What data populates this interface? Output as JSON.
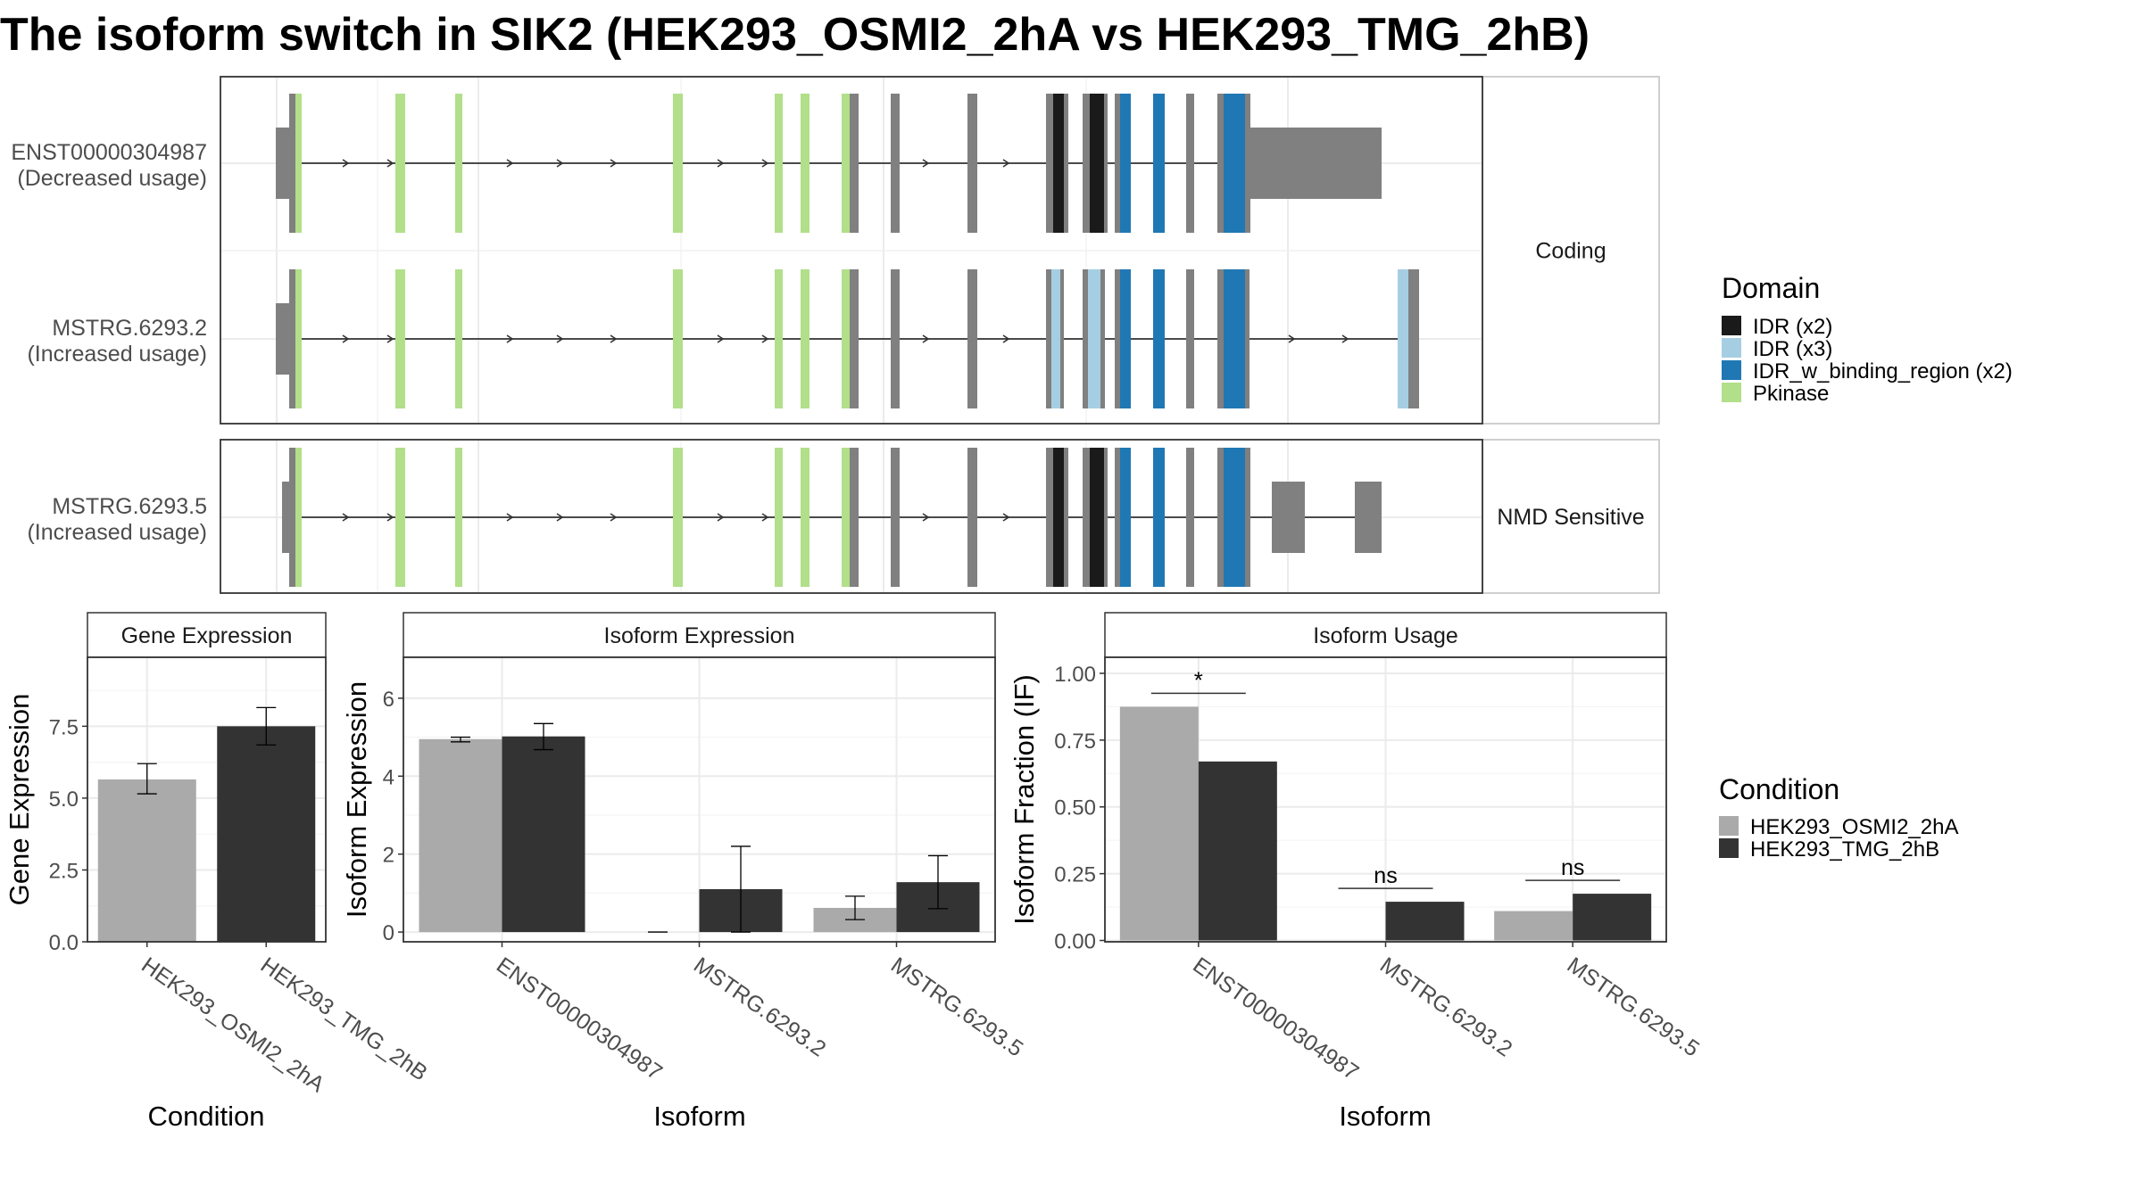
{
  "title": "The isoform switch in SIK2 (HEK293_OSMI2_2hA vs HEK293_TMG_2hB)",
  "colors": {
    "cond1": "#aaaaaa",
    "cond2": "#333333",
    "idr2": "#1a1a1a",
    "idr3": "#a6cee3",
    "idrbind": "#1f78b4",
    "pkinase": "#b2df8a",
    "exon": "#808080"
  },
  "transcripts": {
    "coding_strip": "Coding",
    "nmd_strip": "NMD Sensitive",
    "rows": [
      {
        "id": "ENST00000304987",
        "usage": "(Decreased usage)",
        "panel": "coding"
      },
      {
        "id": "MSTRG.6293.2",
        "usage": "(Increased usage)",
        "panel": "coding"
      },
      {
        "id": "MSTRG.6293.5",
        "usage": "(Increased usage)",
        "panel": "nmd"
      }
    ]
  },
  "domain_legend": {
    "title": "Domain",
    "items": [
      {
        "label": "IDR (x2)",
        "color": "#1a1a1a"
      },
      {
        "label": "IDR (x3)",
        "color": "#a6cee3"
      },
      {
        "label": "IDR_w_binding_region (x2)",
        "color": "#1f78b4"
      },
      {
        "label": "Pkinase",
        "color": "#b2df8a"
      }
    ]
  },
  "condition_legend": {
    "title": "Condition",
    "items": [
      {
        "label": "HEK293_OSMI2_2hA",
        "color": "#aaaaaa"
      },
      {
        "label": "HEK293_TMG_2hB",
        "color": "#333333"
      }
    ]
  },
  "chart_data": [
    {
      "type": "bar",
      "title": "Gene Expression",
      "xlabel": "Condition",
      "ylabel": "Gene Expression",
      "categories": [
        "HEK293_OSMI2_2hA",
        "HEK293_TMG_2hB"
      ],
      "values": [
        5.65,
        7.5
      ],
      "errors": [
        [
          5.15,
          6.2
        ],
        [
          6.85,
          8.15
        ]
      ],
      "ylim": [
        0,
        9.9
      ],
      "yticks": [
        0.0,
        2.5,
        5.0,
        7.5
      ],
      "ytick_labels": [
        "0.0",
        "2.5",
        "5.0",
        "7.5"
      ]
    },
    {
      "type": "bar",
      "title": "Isoform Expression",
      "xlabel": "Isoform",
      "ylabel": "Isoform Expression",
      "categories": [
        "ENST00000304987",
        "MSTRG.6293.2",
        "MSTRG.6293.5"
      ],
      "series": [
        {
          "name": "HEK293_OSMI2_2hA",
          "values": [
            4.95,
            0.0,
            0.62
          ],
          "errors": [
            [
              4.88,
              5.0
            ],
            [
              0.0,
              0.0
            ],
            [
              0.32,
              0.92
            ]
          ]
        },
        {
          "name": "HEK293_TMG_2hB",
          "values": [
            5.02,
            1.1,
            1.28
          ],
          "errors": [
            [
              4.68,
              5.35
            ],
            [
              0.0,
              2.2
            ],
            [
              0.6,
              1.96
            ]
          ]
        }
      ],
      "ylim": [
        -0.25,
        7.05
      ],
      "yticks": [
        0,
        2,
        4,
        6
      ],
      "ytick_labels": [
        "0",
        "2",
        "4",
        "6"
      ]
    },
    {
      "type": "bar",
      "title": "Isoform Usage",
      "xlabel": "Isoform",
      "ylabel": "Isoform Fraction (IF)",
      "categories": [
        "ENST00000304987",
        "MSTRG.6293.2",
        "MSTRG.6293.5"
      ],
      "series": [
        {
          "name": "HEK293_OSMI2_2hA",
          "values": [
            0.875,
            0.0,
            0.11
          ]
        },
        {
          "name": "HEK293_TMG_2hB",
          "values": [
            0.67,
            0.145,
            0.175
          ]
        }
      ],
      "significance": [
        "*",
        "ns",
        "ns"
      ],
      "ylim": [
        -0.005,
        1.06
      ],
      "yticks": [
        0.0,
        0.25,
        0.5,
        0.75,
        1.0
      ],
      "ytick_labels": [
        "0.00",
        "0.25",
        "0.50",
        "0.75",
        "1.00"
      ]
    }
  ]
}
